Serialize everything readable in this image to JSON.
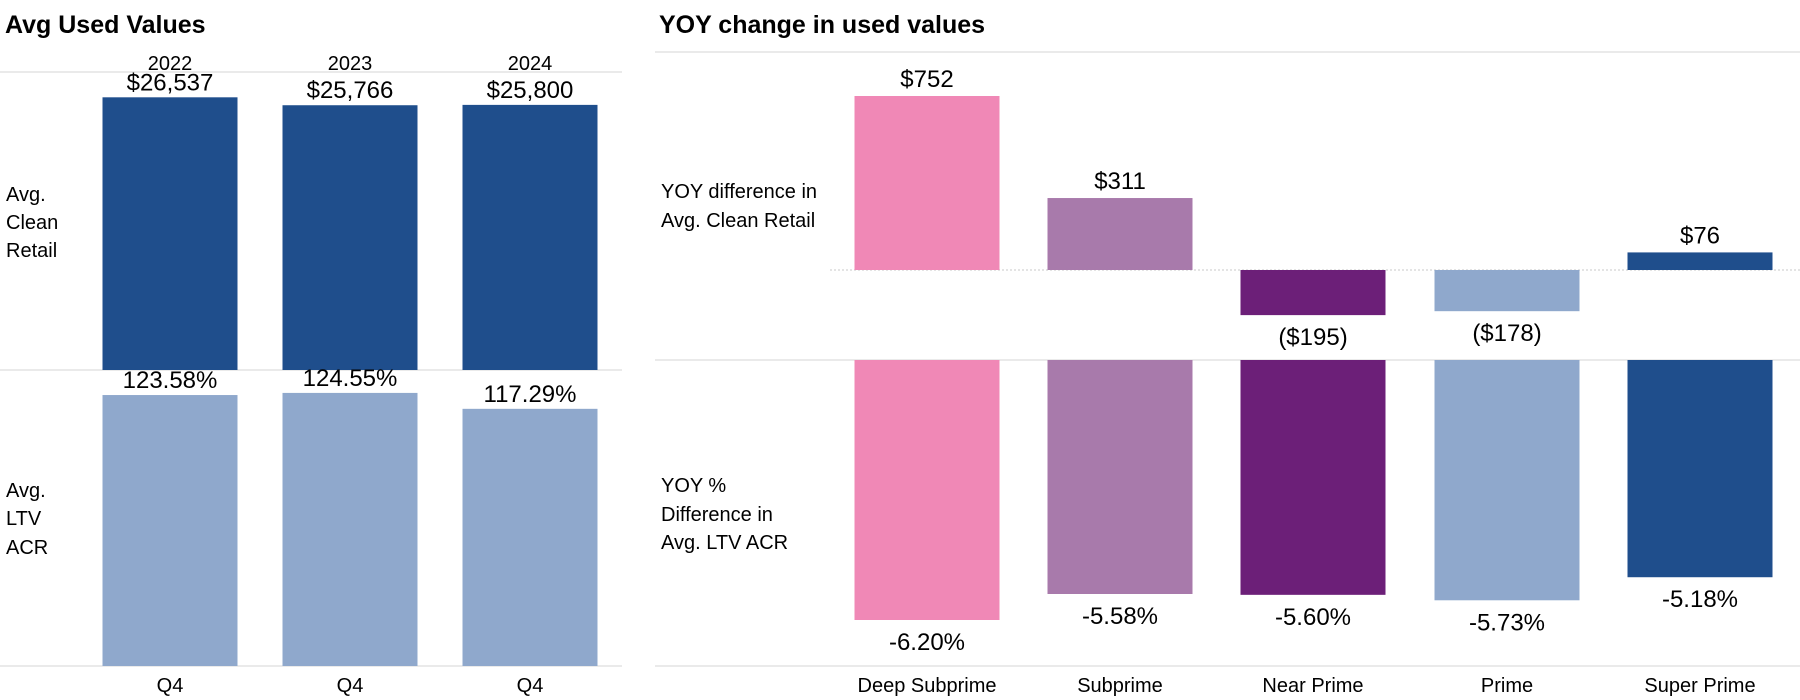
{
  "left_panel": {
    "title": "Avg Used Values",
    "row_labels": {
      "clean_retail": [
        "Avg.",
        "Clean",
        "Retail"
      ],
      "ltv_acr": [
        "Avg.",
        "LTV",
        "ACR"
      ]
    }
  },
  "right_panel": {
    "title": "YOY change in used values",
    "row_labels": {
      "difference": [
        "YOY difference in",
        "Avg. Clean Retail"
      ],
      "pct": [
        "YOY %",
        "Difference in",
        "Avg. LTV ACR"
      ]
    }
  },
  "chart_data": [
    {
      "type": "bar",
      "title": "Avg Used Values",
      "column_headers": [
        "2022",
        "2023",
        "2024"
      ],
      "categories": [
        "Q4",
        "Q4",
        "Q4"
      ],
      "series": [
        {
          "name": "Avg. Clean Retail",
          "values": [
            26537,
            25766,
            25800
          ],
          "labels": [
            "$26,537",
            "$25,766",
            "$25,800"
          ],
          "color": "#1f4e8c",
          "ylim": [
            0,
            29000
          ]
        },
        {
          "name": "Avg. LTV ACR",
          "values": [
            123.58,
            124.55,
            117.29
          ],
          "labels": [
            "123.58%",
            "124.55%",
            "117.29%"
          ],
          "color": "#8fa8cc",
          "ylim": [
            0,
            135
          ]
        }
      ]
    },
    {
      "type": "bar",
      "title": "YOY change in used values",
      "categories": [
        "Deep Subprime",
        "Subprime",
        "Near Prime",
        "Prime",
        "Super Prime"
      ],
      "colors": [
        "#f088b6",
        "#a87aab",
        "#6c1f78",
        "#8fa8cc",
        "#1f4e8c"
      ],
      "series": [
        {
          "name": "YOY difference in Avg. Clean Retail",
          "values": [
            752,
            311,
            -195,
            -178,
            76
          ],
          "labels": [
            "$752",
            "$311",
            "($195)",
            "($178)",
            "$76"
          ],
          "ylim": [
            -300,
            900
          ]
        },
        {
          "name": "YOY % Difference in Avg. LTV ACR",
          "values": [
            -6.2,
            -5.58,
            -5.6,
            -5.73,
            -5.18
          ],
          "labels": [
            "-6.20%",
            "-5.58%",
            "-5.60%",
            "-5.73%",
            "-5.18%"
          ],
          "ylim": [
            -7,
            0
          ]
        }
      ]
    }
  ]
}
